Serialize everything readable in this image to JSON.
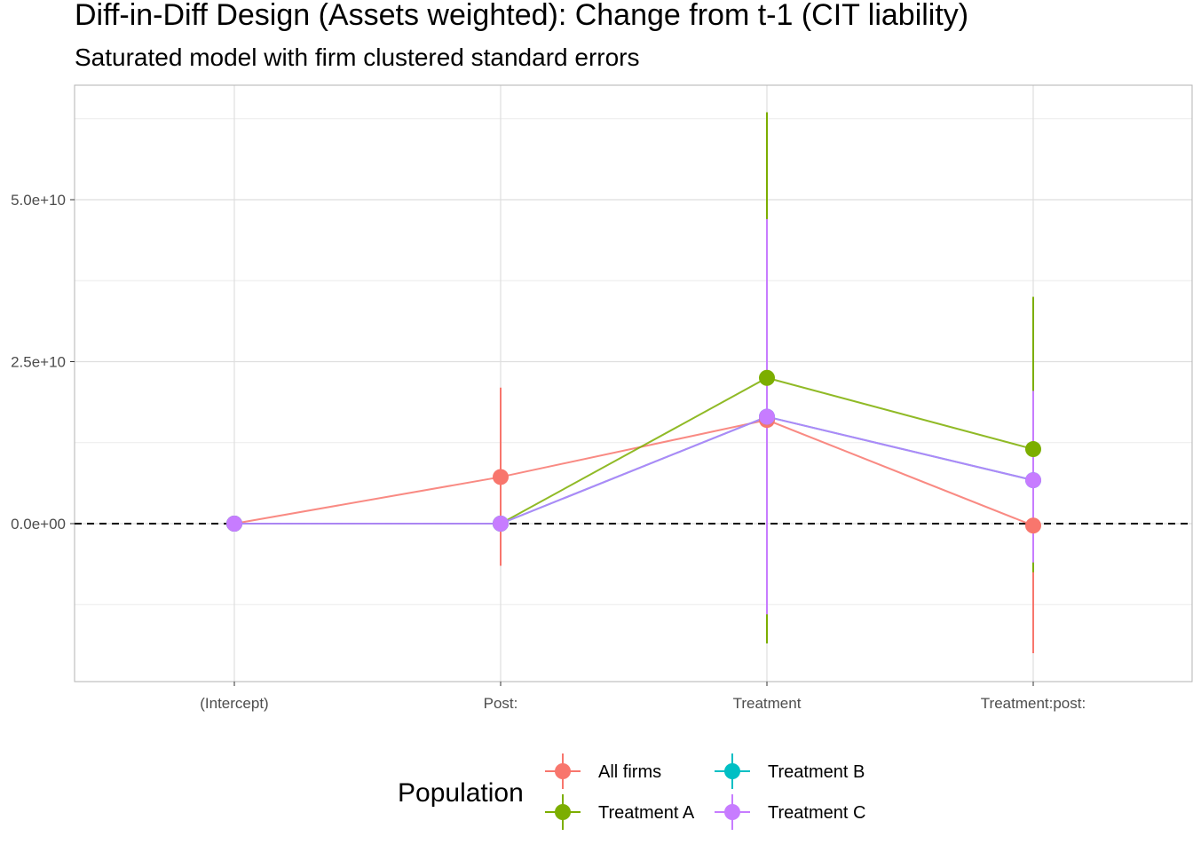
{
  "chart_data": {
    "type": "scatter",
    "title": "Diff-in-Diff Design (Assets weighted): Change from t-1 (CIT liability)",
    "subtitle": "Saturated model with firm clustered standard errors",
    "xlabel": "",
    "ylabel": "",
    "categories": [
      "(Intercept)",
      "Post:",
      "Treatment",
      "Treatment:post:"
    ],
    "y_ticks": [
      0,
      25000000000,
      50000000000
    ],
    "y_tick_labels": [
      "0.0e+00",
      "2.5e+10",
      "5.0e+10"
    ],
    "ylim": [
      -24000000000,
      68000000000
    ],
    "reference_line": 0,
    "grid": true,
    "legend": {
      "title": "Population",
      "position": "bottom"
    },
    "series": [
      {
        "name": "All firms",
        "color": "#F8766D",
        "values": [
          0,
          7200000000,
          16000000000,
          -300000000
        ],
        "lower": [
          0,
          -6500000000,
          null,
          -20000000000
        ],
        "upper": [
          0,
          21000000000,
          null,
          800000000
        ]
      },
      {
        "name": "Treatment A",
        "color": "#7CAE00",
        "values": [
          0,
          0,
          22500000000,
          11500000000
        ],
        "lower": [
          0,
          0,
          -18500000000,
          -7500000000
        ],
        "upper": [
          0,
          0,
          63500000000,
          35000000000
        ]
      },
      {
        "name": "Treatment B",
        "color": "#00BFC4",
        "values": [
          0,
          0,
          16500000000,
          6700000000
        ],
        "lower": [
          0,
          0,
          null,
          null
        ],
        "upper": [
          0,
          0,
          null,
          null
        ]
      },
      {
        "name": "Treatment C",
        "color": "#C77CFF",
        "values": [
          0,
          0,
          16500000000,
          6700000000
        ],
        "lower": [
          0,
          0,
          -14000000000,
          -6000000000
        ],
        "upper": [
          0,
          0,
          47000000000,
          20500000000
        ]
      }
    ]
  }
}
